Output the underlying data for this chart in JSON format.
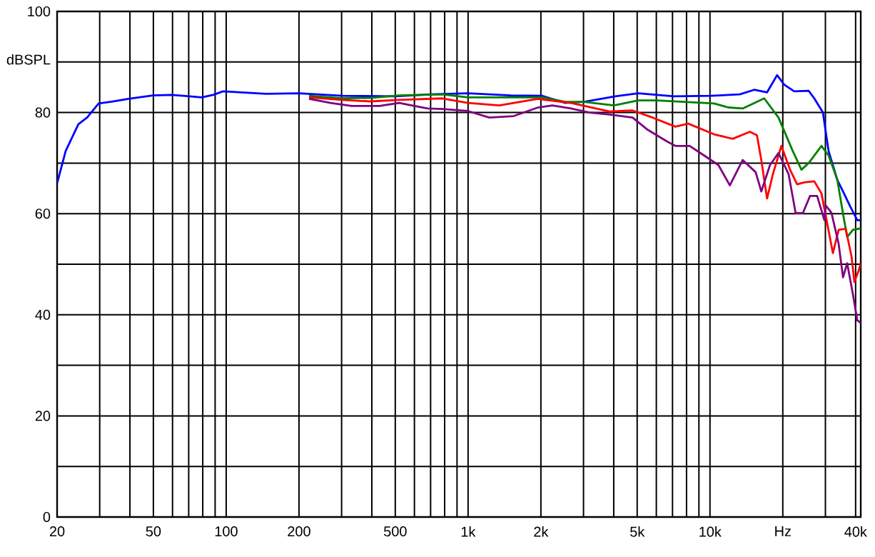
{
  "chart_data": {
    "type": "line",
    "ylabel": "dBSPL",
    "xlim": [
      20,
      42000
    ],
    "ylim": [
      0,
      100
    ],
    "log": "x",
    "grid": true,
    "line_style": "solid",
    "xticks": [
      20,
      {
        "value": 30,
        "label": null
      },
      {
        "value": 40,
        "label": null
      },
      50,
      {
        "value": 60,
        "label": null
      },
      {
        "value": 70,
        "label": null
      },
      {
        "value": 80,
        "label": null
      },
      {
        "value": 90,
        "label": null
      },
      100,
      200,
      {
        "value": 300,
        "label": null
      },
      {
        "value": 400,
        "label": null
      },
      500,
      {
        "value": 600,
        "label": null
      },
      {
        "value": 700,
        "label": null
      },
      {
        "value": 800,
        "label": null
      },
      {
        "value": 900,
        "label": null
      },
      {
        "value": 1000,
        "label": "1k"
      },
      {
        "value": 2000,
        "label": "2k"
      },
      {
        "value": 3000,
        "label": null
      },
      {
        "value": 4000,
        "label": null
      },
      {
        "value": 5000,
        "label": "5k"
      },
      {
        "value": 6000,
        "label": null
      },
      {
        "value": 7000,
        "label": null
      },
      {
        "value": 8000,
        "label": null
      },
      {
        "value": 9000,
        "label": null
      },
      {
        "value": 10000,
        "label": "10k"
      },
      {
        "value": 20000,
        "label": "Hz"
      },
      {
        "value": 30000,
        "label": null
      },
      {
        "value": 40000,
        "label": "40k"
      }
    ],
    "yticks": [
      0,
      {
        "value": 10,
        "label": null
      },
      20,
      {
        "value": 30,
        "label": null
      },
      40,
      {
        "value": 50,
        "label": null
      },
      60,
      {
        "value": 70,
        "label": null
      },
      80,
      {
        "value": 90,
        "label": null
      },
      100
    ],
    "series": [
      {
        "color": "#0000ff",
        "x": [
          20,
          21.7,
          24.5,
          26.6,
          29.7,
          34,
          39.5,
          49.8,
          59.5,
          79.2,
          88.3,
          97.1,
          146,
          200,
          301,
          504,
          700,
          998,
          1502,
          2028,
          2523,
          3013,
          4063,
          5049,
          7096,
          10118,
          13280,
          15240,
          17220,
          18940,
          20280,
          22290,
          25580,
          26980,
          29300,
          30920,
          33570,
          35480,
          37930,
          40640,
          42000
        ],
        "values": [
          66,
          72.4,
          77.7,
          79,
          81.8,
          82.2,
          82.7,
          83.4,
          83.5,
          83,
          83.5,
          84.2,
          83.7,
          83.8,
          83.3,
          83.2,
          83.6,
          83.8,
          83.4,
          83.3,
          81.9,
          82.1,
          83.2,
          83.8,
          83.2,
          83.3,
          83.6,
          84.5,
          84,
          87.4,
          85.5,
          84.2,
          84.3,
          82.8,
          80,
          72.4,
          66.7,
          64.4,
          61.5,
          58.7,
          58.7
        ]
      },
      {
        "color": "#008000",
        "x": [
          220,
          301,
          395,
          519,
          782,
          998,
          1502,
          2028,
          2523,
          3013,
          4008,
          5049,
          6029,
          10393,
          11918,
          13650,
          16760,
          19200,
          21980,
          23880,
          25580,
          28900,
          30920,
          33570,
          35480,
          36910,
          39000,
          42000
        ],
        "values": [
          83.3,
          82.8,
          82.9,
          83.4,
          83.6,
          83,
          83,
          83,
          82.1,
          82.1,
          81.4,
          82.4,
          82.4,
          81.8,
          81,
          80.8,
          82.8,
          79,
          72.4,
          68.7,
          70,
          73.4,
          71.5,
          66.8,
          60,
          55.4,
          56.8,
          57.1
        ]
      },
      {
        "color": "#ff0000",
        "x": [
          220,
          301,
          395,
          519,
          782,
          998,
          1346,
          1946,
          2661,
          3845,
          4786,
          5793,
          7194,
          8130,
          10393,
          12420,
          14620,
          15640,
          16300,
          17220,
          18200,
          19730,
          21430,
          22920,
          24550,
          26980,
          28900,
          32220,
          34040,
          36410,
          38460,
          39540,
          41210,
          42000
        ],
        "values": [
          83,
          82.5,
          82.2,
          82.5,
          82.8,
          81.9,
          81.4,
          82.7,
          81.9,
          80.2,
          80.4,
          79,
          77.2,
          77.8,
          75.7,
          74.8,
          76.2,
          75.5,
          70.6,
          63,
          67.8,
          73.4,
          68.7,
          65.8,
          66.2,
          66.4,
          64,
          52.2,
          56.8,
          57,
          51.6,
          46.5,
          48.8,
          50.2
        ]
      },
      {
        "color": "#800080",
        "x": [
          220,
          270,
          330,
          430,
          519,
          600,
          680,
          782,
          998,
          1224,
          1544,
          1946,
          2229,
          2661,
          3178,
          3845,
          4786,
          5484,
          6635,
          7194,
          8242,
          9460,
          10840,
          12080,
          13650,
          15450,
          16300,
          17700,
          19200,
          21140,
          22600,
          24210,
          25900,
          27730,
          29720,
          30130,
          31770,
          34040,
          35480,
          36910,
          39000,
          40640,
          42000
        ],
        "values": [
          82.7,
          81.9,
          81.3,
          81.3,
          81.9,
          81.3,
          80.8,
          80.7,
          80.3,
          79,
          79.3,
          81,
          81.4,
          80.8,
          80,
          79.6,
          79,
          76.7,
          74.3,
          73.4,
          73.4,
          71.5,
          69.6,
          65.6,
          70.6,
          68.2,
          64.4,
          69.6,
          72,
          67.8,
          60.1,
          60.1,
          63.5,
          63.5,
          58.7,
          61.6,
          60.2,
          54,
          47.4,
          50.2,
          44,
          38.9,
          38.4
        ]
      }
    ]
  }
}
